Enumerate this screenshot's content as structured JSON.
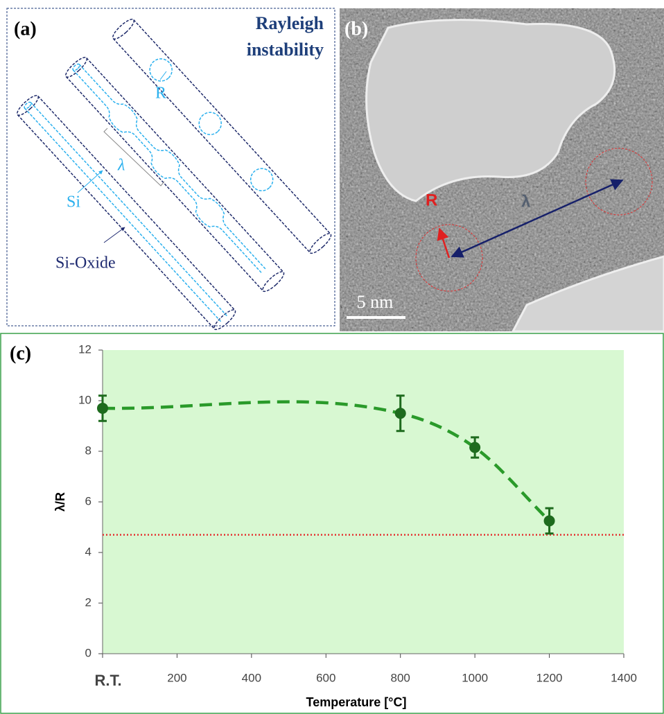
{
  "panel_a": {
    "label": "(a)",
    "title_line1": "Rayleigh",
    "title_line2": "instability",
    "radius_label": "R",
    "wavelength_label": "λ",
    "core_label": "Si",
    "shell_label": "Si-Oxide"
  },
  "panel_b": {
    "label": "(b)",
    "radius_label": "R",
    "wavelength_label": "λ",
    "scale_bar": "5 nm"
  },
  "chart_data": {
    "type": "line",
    "panel_label": "(c)",
    "x_label": "Temperature [°C]",
    "y_label": "λ/R",
    "x": [
      0,
      800,
      1000,
      1200
    ],
    "series": [
      {
        "color": "#1e6b1e",
        "values": [
          9.7,
          9.5,
          8.15,
          5.25
        ],
        "errors": [
          0.5,
          0.7,
          0.4,
          0.5
        ]
      }
    ],
    "xlim": [
      0,
      1400
    ],
    "ylim": [
      0,
      12
    ],
    "xticks": [
      {
        "value": 0,
        "label": "R.T."
      },
      200,
      400,
      600,
      800,
      1000,
      1200,
      1400
    ],
    "yticks": [
      0,
      2,
      4,
      6,
      8,
      10,
      12
    ],
    "grid": false,
    "plot_background": "#d8f8d2",
    "reference_line": {
      "value": 4.7,
      "color": "#e53030"
    }
  }
}
